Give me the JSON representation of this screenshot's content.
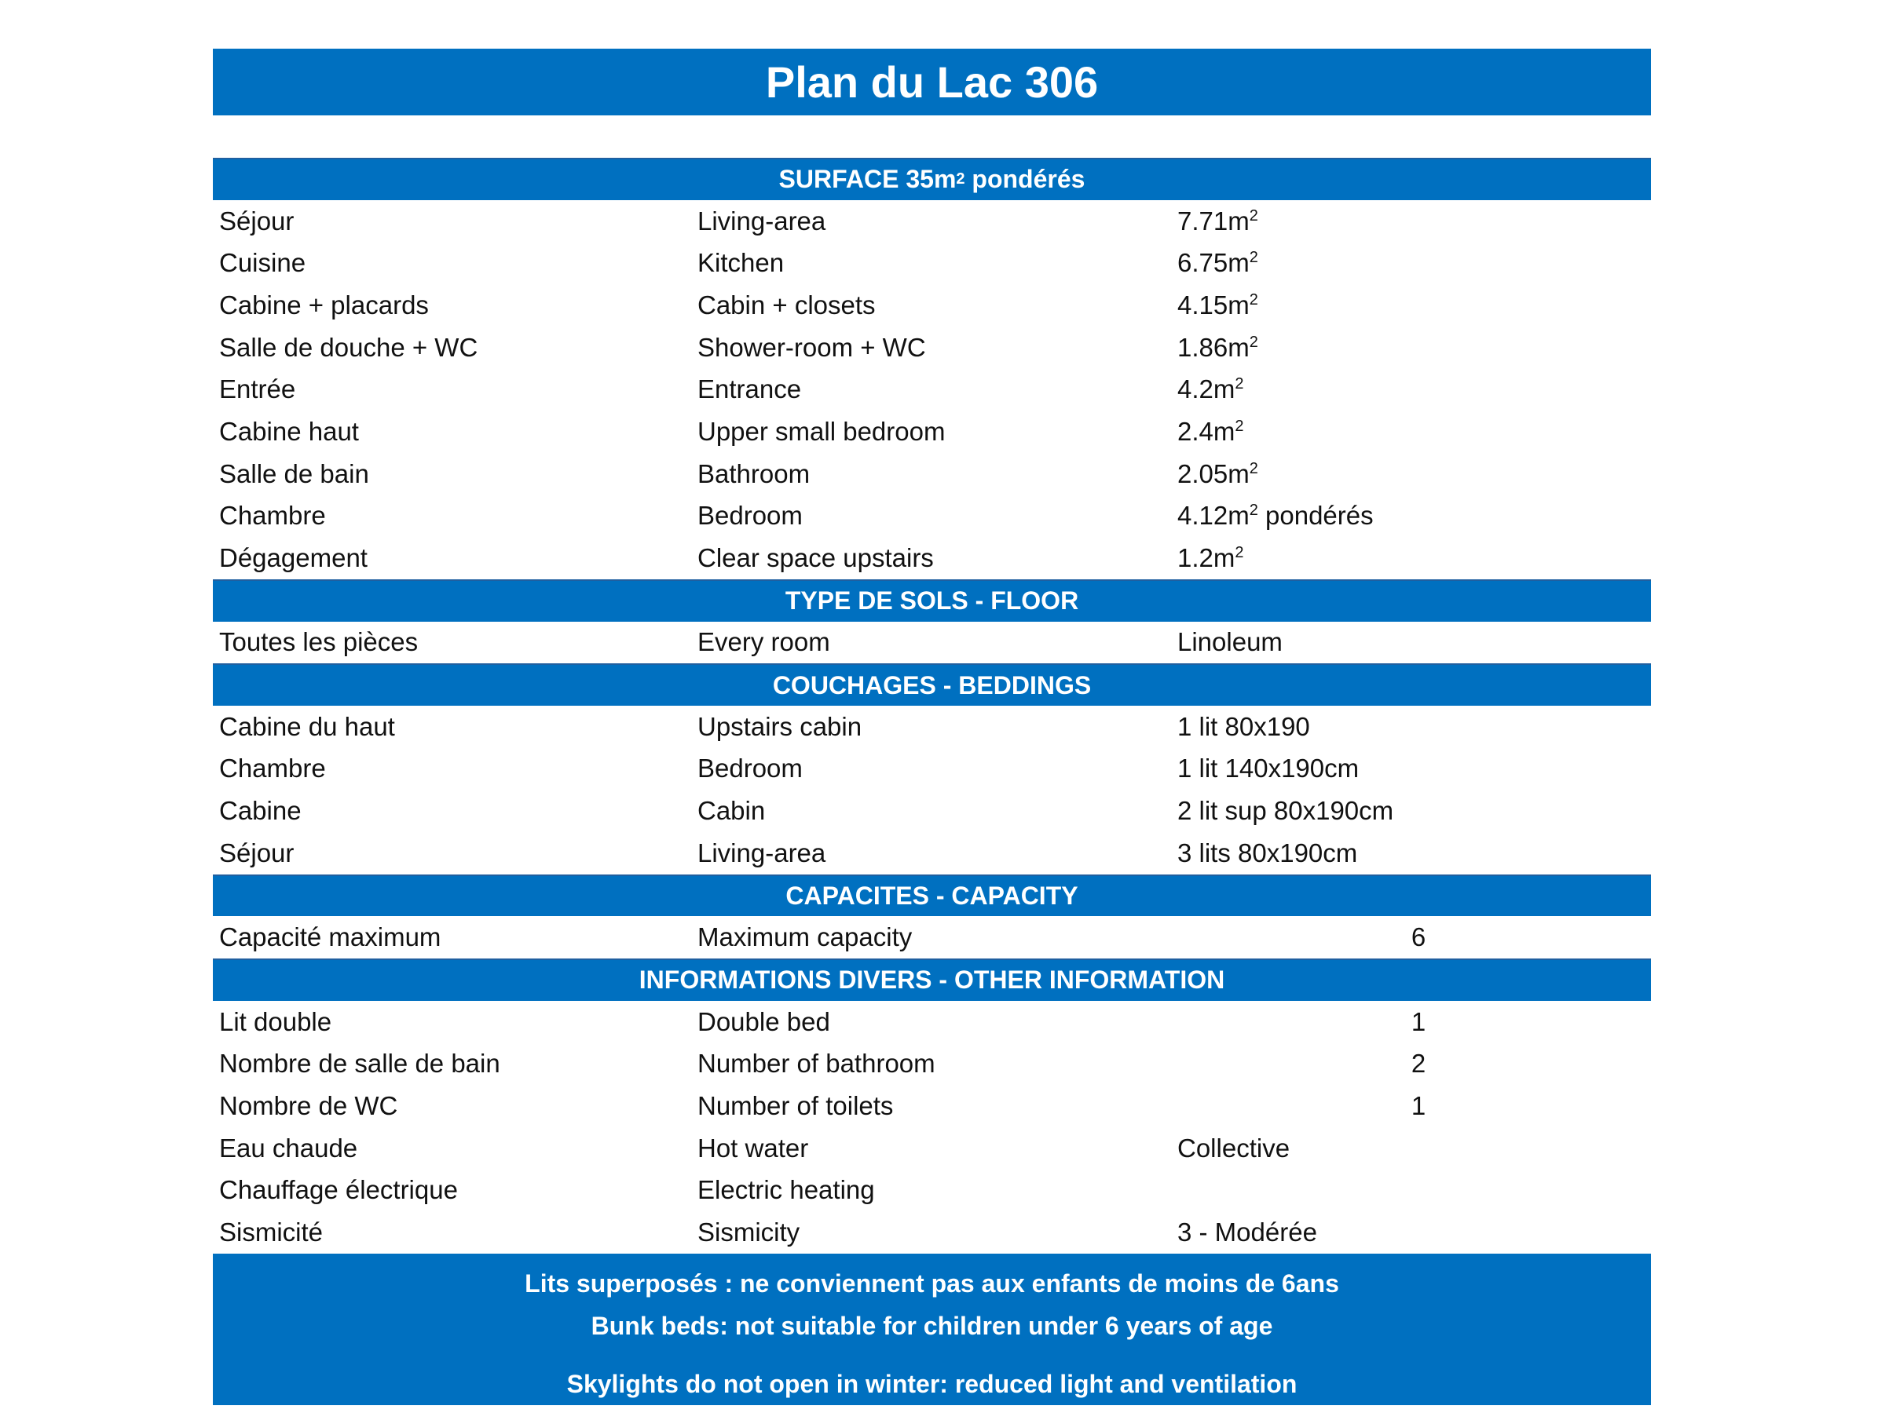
{
  "title": "Plan du Lac 306",
  "sections": [
    {
      "header": "SURFACE 35m² pondérés",
      "header_main": "SURFACE 35m",
      "header_sup": "2",
      "header_tail": " pondérés",
      "rows": [
        {
          "fr": "Séjour",
          "en": "Living-area",
          "value": "7.71m",
          "sup": "2",
          "suffix": ""
        },
        {
          "fr": "Cuisine",
          "en": "Kitchen",
          "value": "6.75m",
          "sup": "2",
          "suffix": ""
        },
        {
          "fr": "Cabine + placards",
          "en": "Cabin + closets",
          "value": "4.15m",
          "sup": "2",
          "suffix": ""
        },
        {
          "fr": "Salle de douche + WC",
          "en": "Shower-room + WC",
          "value": "1.86m",
          "sup": "2",
          "suffix": ""
        },
        {
          "fr": "Entrée",
          "en": "Entrance",
          "value": "4.2m",
          "sup": "2",
          "suffix": ""
        },
        {
          "fr": "Cabine haut",
          "en": "Upper small bedroom",
          "value": "2.4m",
          "sup": "2",
          "suffix": ""
        },
        {
          "fr": "Salle de bain",
          "en": "Bathroom",
          "value": "2.05m",
          "sup": "2",
          "suffix": ""
        },
        {
          "fr": "Chambre",
          "en": "Bedroom",
          "value": "4.12m",
          "sup": "2",
          "suffix": " pondérés"
        },
        {
          "fr": "Dégagement",
          "en": "Clear space upstairs",
          "value": "1.2m",
          "sup": "2",
          "suffix": ""
        }
      ]
    },
    {
      "header": "TYPE DE SOLS - FLOOR",
      "rows": [
        {
          "fr": "Toutes les pièces",
          "en": "Every room",
          "value": "Linoleum"
        }
      ]
    },
    {
      "header": "COUCHAGES - BEDDINGS",
      "rows": [
        {
          "fr": "Cabine du haut",
          "en": "Upstairs cabin",
          "value": "1 lit 80x190"
        },
        {
          "fr": "Chambre",
          "en": "Bedroom",
          "value": "1 lit 140x190cm"
        },
        {
          "fr": "Cabine",
          "en": "Cabin",
          "value": "2 lit sup 80x190cm"
        },
        {
          "fr": "Séjour",
          "en": "Living-area",
          "value": "3 lits 80x190cm"
        }
      ]
    },
    {
      "header": "CAPACITES - CAPACITY",
      "rows": [
        {
          "fr": "Capacité maximum",
          "en": "Maximum capacity",
          "value": "6",
          "numeric": true
        }
      ]
    },
    {
      "header": "INFORMATIONS DIVERS - OTHER INFORMATION",
      "rows": [
        {
          "fr": "Lit double",
          "en": "Double bed",
          "value": "1",
          "numeric": true
        },
        {
          "fr": "Nombre de salle de bain",
          "en": "Number of bathroom",
          "value": "2",
          "numeric": true
        },
        {
          "fr": "Nombre de WC",
          "en": "Number of toilets",
          "value": "1",
          "numeric": true
        },
        {
          "fr": "Eau chaude",
          "en": "Hot water",
          "value": "Collective"
        },
        {
          "fr": "Chauffage électrique",
          "en": "Electric heating",
          "value": ""
        },
        {
          "fr": "Sismicité",
          "en": "Sismicity",
          "value": "3 - Modérée"
        }
      ]
    }
  ],
  "footer": {
    "line1": "Lits superposés : ne conviennent pas aux enfants de moins de 6ans",
    "line2": "Bunk beds: not suitable for children under 6 years of age",
    "line3": "Skylights do not open in winter: reduced light and ventilation"
  },
  "colors": {
    "header_bg": "#0070c0",
    "header_text": "#ffffff"
  }
}
